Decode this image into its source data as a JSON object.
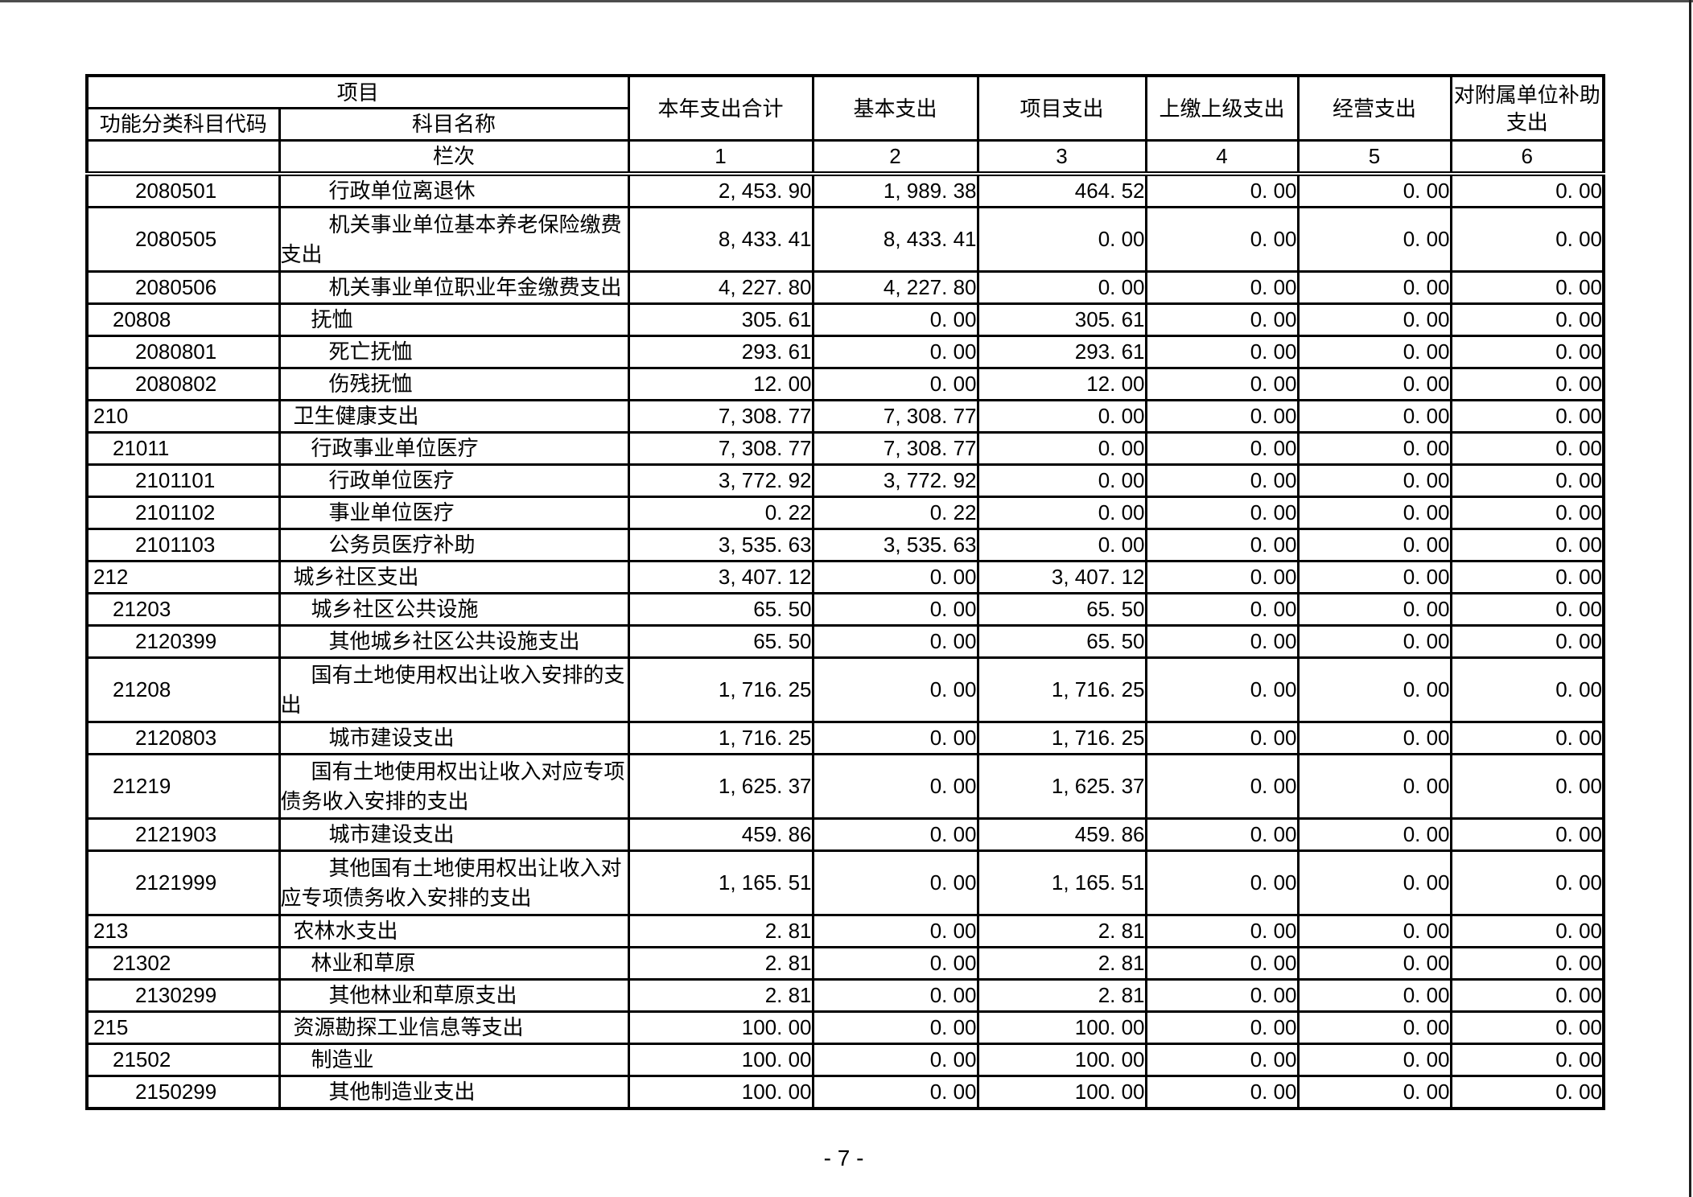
{
  "page": {
    "footer_page_number": "- 7 -"
  },
  "colors": {
    "page_background": "#ffffff",
    "table_border": "#000000",
    "text": "#000000",
    "top_edge_line": "#4d4d4d",
    "right_edge_line": "#1f1f1f"
  },
  "table": {
    "header": {
      "project_group_label": "项目",
      "code_label": "功能分类科目代码",
      "name_label": "科目名称",
      "lanci_label": "栏次",
      "value_columns": [
        "本年支出合计",
        "基本支出",
        "项目支出",
        "上缴上级支出",
        "经营支出",
        "对附属单位补助支出"
      ],
      "column_indexes": [
        "1",
        "2",
        "3",
        "4",
        "5",
        "6"
      ]
    },
    "rows": [
      {
        "code": "2080501",
        "name": "行政单位离退休",
        "level": 3,
        "tall": false,
        "values": [
          "2, 453. 90",
          "1, 989. 38",
          "464. 52",
          "0. 00",
          "0. 00",
          "0. 00"
        ]
      },
      {
        "code": "2080505",
        "name": "机关事业单位基本养老保险缴费支出",
        "level": 3,
        "tall": true,
        "values": [
          "8, 433. 41",
          "8, 433. 41",
          "0. 00",
          "0. 00",
          "0. 00",
          "0. 00"
        ]
      },
      {
        "code": "2080506",
        "name": "机关事业单位职业年金缴费支出",
        "level": 3,
        "tall": false,
        "values": [
          "4, 227. 80",
          "4, 227. 80",
          "0. 00",
          "0. 00",
          "0. 00",
          "0. 00"
        ]
      },
      {
        "code": "20808",
        "name": "抚恤",
        "level": 2,
        "tall": false,
        "values": [
          "305. 61",
          "0. 00",
          "305. 61",
          "0. 00",
          "0. 00",
          "0. 00"
        ]
      },
      {
        "code": "2080801",
        "name": "死亡抚恤",
        "level": 3,
        "tall": false,
        "values": [
          "293. 61",
          "0. 00",
          "293. 61",
          "0. 00",
          "0. 00",
          "0. 00"
        ]
      },
      {
        "code": "2080802",
        "name": "伤残抚恤",
        "level": 3,
        "tall": false,
        "values": [
          "12. 00",
          "0. 00",
          "12. 00",
          "0. 00",
          "0. 00",
          "0. 00"
        ]
      },
      {
        "code": "210",
        "name": "卫生健康支出",
        "level": 1,
        "tall": false,
        "values": [
          "7, 308. 77",
          "7, 308. 77",
          "0. 00",
          "0. 00",
          "0. 00",
          "0. 00"
        ]
      },
      {
        "code": "21011",
        "name": "行政事业单位医疗",
        "level": 2,
        "tall": false,
        "values": [
          "7, 308. 77",
          "7, 308. 77",
          "0. 00",
          "0. 00",
          "0. 00",
          "0. 00"
        ]
      },
      {
        "code": "2101101",
        "name": "行政单位医疗",
        "level": 3,
        "tall": false,
        "values": [
          "3, 772. 92",
          "3, 772. 92",
          "0. 00",
          "0. 00",
          "0. 00",
          "0. 00"
        ]
      },
      {
        "code": "2101102",
        "name": "事业单位医疗",
        "level": 3,
        "tall": false,
        "values": [
          "0. 22",
          "0. 22",
          "0. 00",
          "0. 00",
          "0. 00",
          "0. 00"
        ]
      },
      {
        "code": "2101103",
        "name": "公务员医疗补助",
        "level": 3,
        "tall": false,
        "values": [
          "3, 535. 63",
          "3, 535. 63",
          "0. 00",
          "0. 00",
          "0. 00",
          "0. 00"
        ]
      },
      {
        "code": "212",
        "name": "城乡社区支出",
        "level": 1,
        "tall": false,
        "values": [
          "3, 407. 12",
          "0. 00",
          "3, 407. 12",
          "0. 00",
          "0. 00",
          "0. 00"
        ]
      },
      {
        "code": "21203",
        "name": "城乡社区公共设施",
        "level": 2,
        "tall": false,
        "values": [
          "65. 50",
          "0. 00",
          "65. 50",
          "0. 00",
          "0. 00",
          "0. 00"
        ]
      },
      {
        "code": "2120399",
        "name": "其他城乡社区公共设施支出",
        "level": 3,
        "tall": false,
        "values": [
          "65. 50",
          "0. 00",
          "65. 50",
          "0. 00",
          "0. 00",
          "0. 00"
        ]
      },
      {
        "code": "21208",
        "name": "国有土地使用权出让收入安排的支出",
        "level": 2,
        "tall": true,
        "values": [
          "1, 716. 25",
          "0. 00",
          "1, 716. 25",
          "0. 00",
          "0. 00",
          "0. 00"
        ]
      },
      {
        "code": "2120803",
        "name": "城市建设支出",
        "level": 3,
        "tall": false,
        "values": [
          "1, 716. 25",
          "0. 00",
          "1, 716. 25",
          "0. 00",
          "0. 00",
          "0. 00"
        ]
      },
      {
        "code": "21219",
        "name": "国有土地使用权出让收入对应专项债务收入安排的支出",
        "level": 2,
        "tall": true,
        "values": [
          "1, 625. 37",
          "0. 00",
          "1, 625. 37",
          "0. 00",
          "0. 00",
          "0. 00"
        ]
      },
      {
        "code": "2121903",
        "name": "城市建设支出",
        "level": 3,
        "tall": false,
        "values": [
          "459. 86",
          "0. 00",
          "459. 86",
          "0. 00",
          "0. 00",
          "0. 00"
        ]
      },
      {
        "code": "2121999",
        "name": "其他国有土地使用权出让收入对应专项债务收入安排的支出",
        "level": 3,
        "tall": true,
        "values": [
          "1, 165. 51",
          "0. 00",
          "1, 165. 51",
          "0. 00",
          "0. 00",
          "0. 00"
        ]
      },
      {
        "code": "213",
        "name": "农林水支出",
        "level": 1,
        "tall": false,
        "values": [
          "2. 81",
          "0. 00",
          "2. 81",
          "0. 00",
          "0. 00",
          "0. 00"
        ]
      },
      {
        "code": "21302",
        "name": "林业和草原",
        "level": 2,
        "tall": false,
        "values": [
          "2. 81",
          "0. 00",
          "2. 81",
          "0. 00",
          "0. 00",
          "0. 00"
        ]
      },
      {
        "code": "2130299",
        "name": "其他林业和草原支出",
        "level": 3,
        "tall": false,
        "values": [
          "2. 81",
          "0. 00",
          "2. 81",
          "0. 00",
          "0. 00",
          "0. 00"
        ]
      },
      {
        "code": "215",
        "name": "资源勘探工业信息等支出",
        "level": 1,
        "tall": false,
        "values": [
          "100. 00",
          "0. 00",
          "100. 00",
          "0. 00",
          "0. 00",
          "0. 00"
        ]
      },
      {
        "code": "21502",
        "name": "制造业",
        "level": 2,
        "tall": false,
        "values": [
          "100. 00",
          "0. 00",
          "100. 00",
          "0. 00",
          "0. 00",
          "0. 00"
        ]
      },
      {
        "code": "2150299",
        "name": "其他制造业支出",
        "level": 3,
        "tall": false,
        "values": [
          "100. 00",
          "0. 00",
          "100. 00",
          "0. 00",
          "0. 00",
          "0. 00"
        ]
      }
    ]
  }
}
